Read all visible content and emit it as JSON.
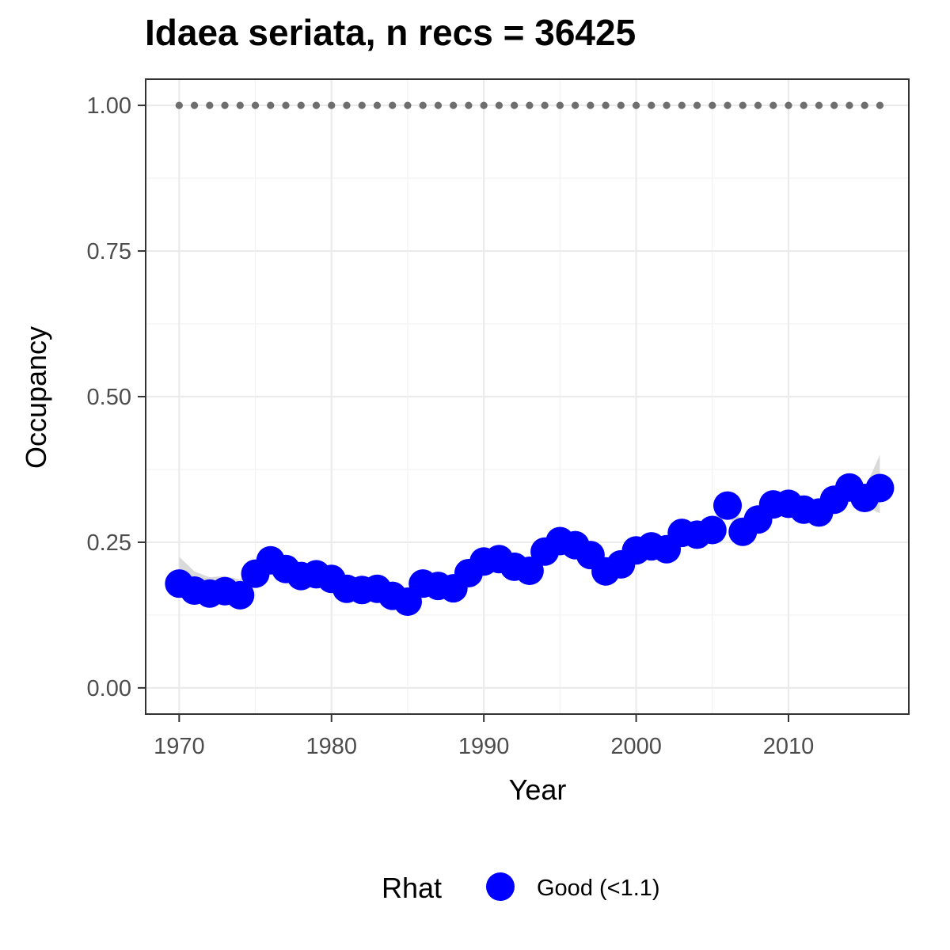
{
  "chart_data": {
    "type": "line",
    "title": "Idaea seriata, n recs = 36425",
    "xlabel": "Year",
    "ylabel": "Occupancy",
    "xlim": [
      1967.8,
      2017.9
    ],
    "ylim": [
      -0.045,
      1.045
    ],
    "x_ticks": [
      1970,
      1980,
      1990,
      2000,
      2010
    ],
    "x_tick_labels": [
      "1970",
      "1980",
      "1990",
      "2000",
      "2010"
    ],
    "y_ticks": [
      0.0,
      0.25,
      0.5,
      0.75,
      1.0
    ],
    "y_tick_labels": [
      "0.00",
      "0.25",
      "0.50",
      "0.75",
      "1.00"
    ],
    "grid": true,
    "legend": {
      "title": "Rhat",
      "placement": "bottom",
      "entries": [
        {
          "label": "Good (<1.1)",
          "color": "#0000ff"
        }
      ]
    },
    "colors": {
      "points": "#0000ff",
      "ribbon": "#d9d9d9",
      "reference": "#6e6e6e"
    },
    "series": [
      {
        "role": "occupancy",
        "x": [
          1970,
          1971,
          1972,
          1973,
          1974,
          1975,
          1976,
          1977,
          1978,
          1979,
          1980,
          1981,
          1982,
          1983,
          1984,
          1985,
          1986,
          1987,
          1988,
          1989,
          1990,
          1991,
          1992,
          1993,
          1994,
          1995,
          1996,
          1997,
          1998,
          1999,
          2000,
          2001,
          2002,
          2003,
          2004,
          2005,
          2006,
          2007,
          2008,
          2009,
          2010,
          2011,
          2012,
          2013,
          2014,
          2015,
          2016
        ],
        "y": [
          0.179,
          0.167,
          0.162,
          0.166,
          0.159,
          0.196,
          0.219,
          0.204,
          0.192,
          0.195,
          0.187,
          0.17,
          0.168,
          0.17,
          0.158,
          0.148,
          0.179,
          0.175,
          0.171,
          0.197,
          0.217,
          0.221,
          0.208,
          0.201,
          0.234,
          0.252,
          0.245,
          0.228,
          0.2,
          0.212,
          0.236,
          0.243,
          0.238,
          0.266,
          0.263,
          0.271,
          0.313,
          0.268,
          0.289,
          0.315,
          0.316,
          0.306,
          0.301,
          0.323,
          0.344,
          0.326,
          0.343
        ],
        "ribbon_lower": [
          0.16,
          0.15,
          0.146,
          0.15,
          0.146,
          0.182,
          0.205,
          0.191,
          0.179,
          0.182,
          0.175,
          0.158,
          0.156,
          0.158,
          0.146,
          0.135,
          0.166,
          0.162,
          0.158,
          0.184,
          0.204,
          0.208,
          0.195,
          0.188,
          0.221,
          0.239,
          0.232,
          0.215,
          0.187,
          0.199,
          0.223,
          0.23,
          0.225,
          0.253,
          0.25,
          0.258,
          0.3,
          0.255,
          0.276,
          0.302,
          0.303,
          0.293,
          0.288,
          0.31,
          0.33,
          0.312,
          0.3
        ],
        "ribbon_upper": [
          0.225,
          0.2,
          0.19,
          0.192,
          0.186,
          0.214,
          0.234,
          0.22,
          0.207,
          0.21,
          0.202,
          0.184,
          0.182,
          0.184,
          0.173,
          0.163,
          0.194,
          0.19,
          0.186,
          0.212,
          0.232,
          0.236,
          0.222,
          0.216,
          0.249,
          0.267,
          0.26,
          0.243,
          0.215,
          0.227,
          0.251,
          0.258,
          0.253,
          0.281,
          0.278,
          0.286,
          0.328,
          0.283,
          0.304,
          0.33,
          0.331,
          0.321,
          0.316,
          0.338,
          0.36,
          0.342,
          0.4
        ]
      },
      {
        "role": "reference",
        "x": [
          1970,
          1971,
          1972,
          1973,
          1974,
          1975,
          1976,
          1977,
          1978,
          1979,
          1980,
          1981,
          1982,
          1983,
          1984,
          1985,
          1986,
          1987,
          1988,
          1989,
          1990,
          1991,
          1992,
          1993,
          1994,
          1995,
          1996,
          1997,
          1998,
          1999,
          2000,
          2001,
          2002,
          2003,
          2004,
          2005,
          2006,
          2007,
          2008,
          2009,
          2010,
          2011,
          2012,
          2013,
          2014,
          2015,
          2016
        ],
        "y": [
          1,
          1,
          1,
          1,
          1,
          1,
          1,
          1,
          1,
          1,
          1,
          1,
          1,
          1,
          1,
          1,
          1,
          1,
          1,
          1,
          1,
          1,
          1,
          1,
          1,
          1,
          1,
          1,
          1,
          1,
          1,
          1,
          1,
          1,
          1,
          1,
          1,
          1,
          1,
          1,
          1,
          1,
          1,
          1,
          1,
          1,
          1
        ]
      }
    ]
  }
}
